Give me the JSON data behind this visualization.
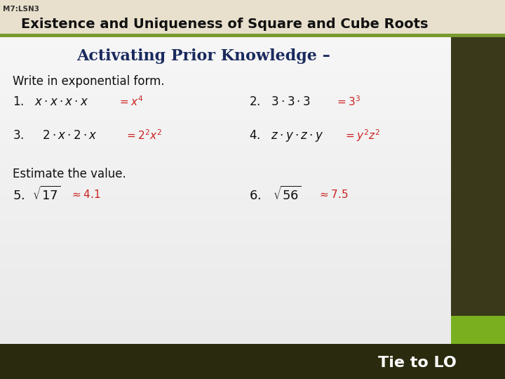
{
  "header_bg": "#e8e0cc",
  "header_border_color": "#7a9a2e",
  "lesson_label": "M7:LSN3",
  "title": "Existence and Uniqueness of Square and Cube Roots",
  "subtitle": "Activating Prior Knowledge –",
  "body_bg": "#f5f5f5",
  "sidebar_color": "#3a3a1a",
  "sidebar_green": "#7ab020",
  "footer_color": "#2a2a0e",
  "footer_text": "Tie to LO",
  "dark_navy": "#1a2a5e",
  "red_answer": "#cc2222"
}
